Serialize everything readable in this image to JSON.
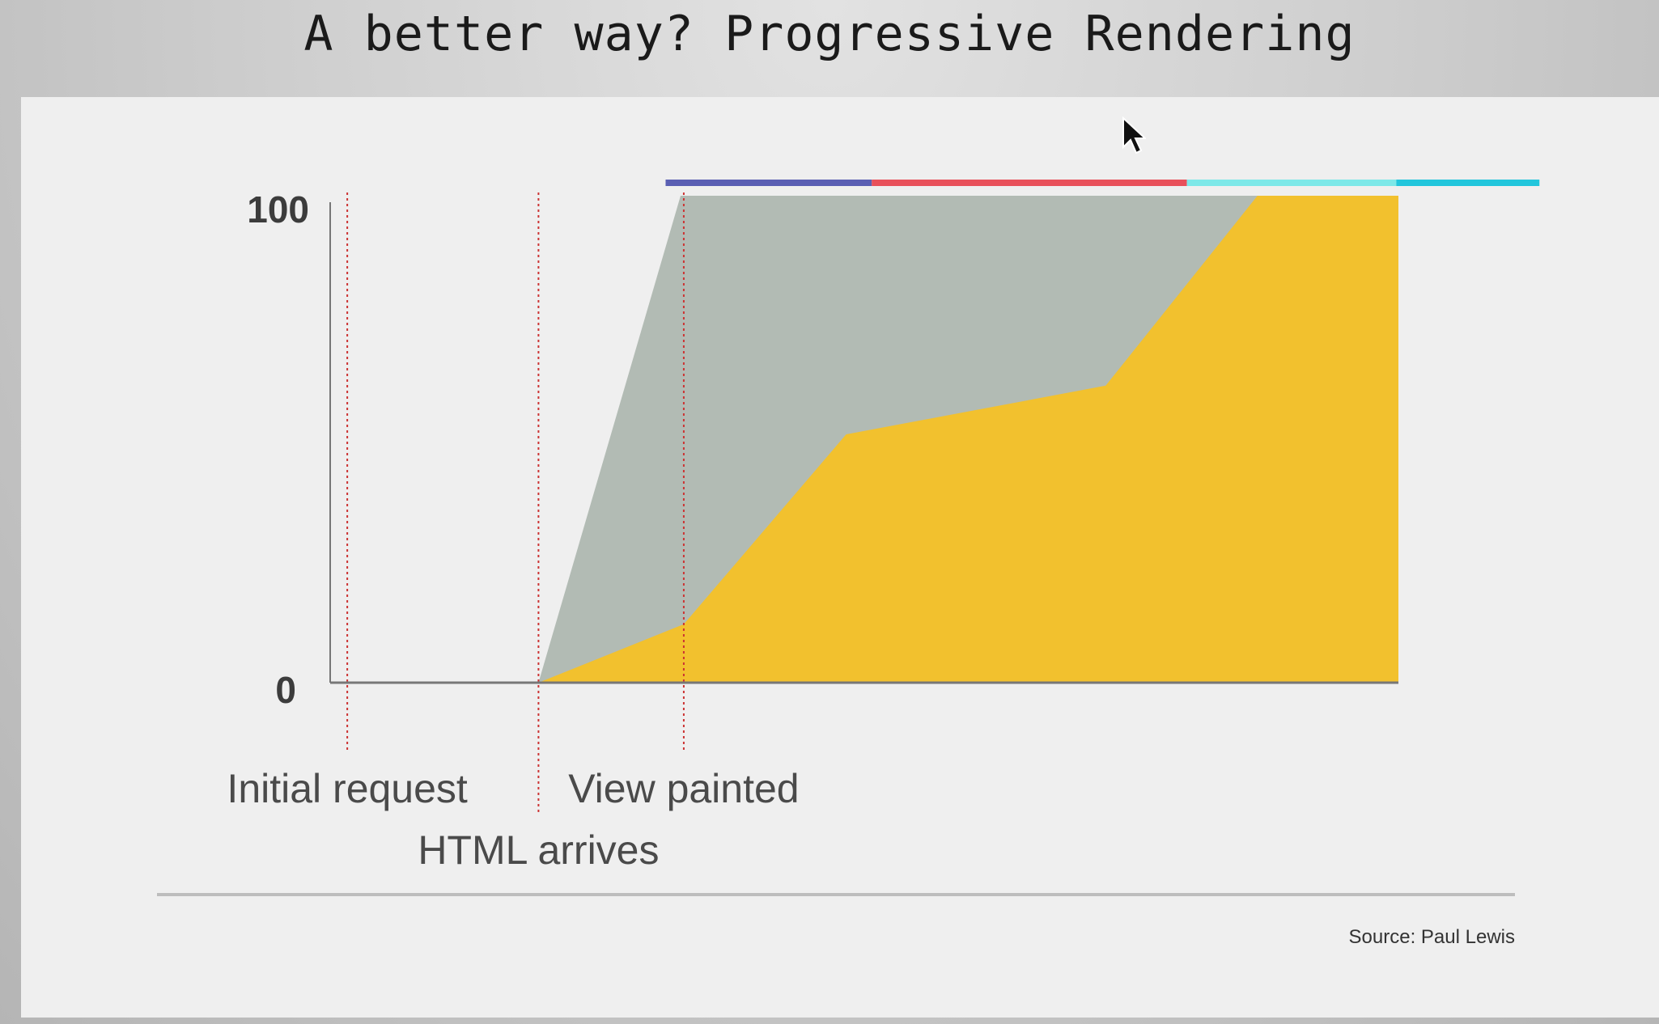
{
  "slide": {
    "title": "A better way? Progressive Rendering",
    "source": "Source: Paul Lewis"
  },
  "colors": {
    "grey_area": "#b2bbb4",
    "yellow_area": "#f2c12e",
    "marker_line": "#cc3333",
    "axis": "#777777",
    "footer_rule": "#bdbdbd"
  },
  "chart_data": {
    "type": "area",
    "title": "",
    "xlabel": "",
    "ylabel": "",
    "ylim": [
      0,
      100
    ],
    "xlim": [
      0,
      100
    ],
    "yticks": [
      "0",
      "100"
    ],
    "grid": false,
    "series": [
      {
        "color": "#b2bbb4",
        "x": [
          0,
          19.5,
          32.8,
          100
        ],
        "y": [
          0,
          0,
          100,
          100
        ]
      },
      {
        "color": "#f2c12e",
        "x": [
          0,
          19.5,
          33.1,
          48.3,
          72.6,
          86.8,
          100
        ],
        "y": [
          0,
          0,
          12,
          51,
          61,
          100,
          100
        ]
      }
    ],
    "markers": [
      {
        "x": 1.6,
        "label": "Initial request",
        "label_row": 1
      },
      {
        "x": 19.5,
        "label": "HTML arrives",
        "label_row": 2
      },
      {
        "x": 33.1,
        "label": "View painted",
        "label_row": 1
      }
    ],
    "phase_bar": [
      {
        "start": 31.4,
        "end": 50.7,
        "color": "#5a5fb3"
      },
      {
        "start": 50.7,
        "end": 80.2,
        "color": "#e8505a"
      },
      {
        "start": 80.2,
        "end": 99.8,
        "color": "#7de8e8"
      },
      {
        "start": 99.8,
        "end": 113.2,
        "color": "#22c6dc"
      }
    ]
  }
}
